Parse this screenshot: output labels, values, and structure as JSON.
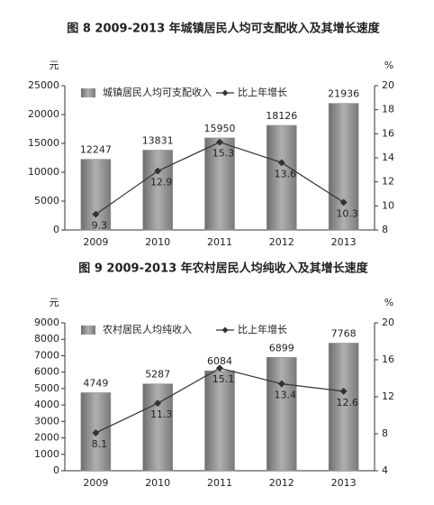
{
  "chart_data": [
    {
      "type": "combo",
      "title": "图 8 2009-2013 年城镇居民人均可支配收入及其增长速度",
      "ylabel": "元",
      "y2label": "%",
      "categories": [
        "2009",
        "2010",
        "2011",
        "2012",
        "2013"
      ],
      "series": [
        {
          "name": "城镇居民人均可支配收入",
          "type": "bar",
          "color": "#8a8a8a",
          "values": [
            12247,
            13831,
            15950,
            18126,
            21936
          ]
        },
        {
          "name": "比上年增长",
          "type": "line",
          "axis": "y2",
          "color": "#333333",
          "values": [
            9.3,
            12.9,
            15.3,
            13.6,
            10.3
          ]
        }
      ],
      "ylim": [
        0,
        25000
      ],
      "yticks": [
        0,
        5000,
        10000,
        15000,
        20000,
        25000
      ],
      "y2lim": [
        8,
        20
      ],
      "y2ticks": [
        8,
        10,
        12,
        14,
        16,
        18,
        20
      ],
      "legend": "top"
    },
    {
      "type": "combo",
      "title": "图 9 2009-2013 年农村居民人均纯收入及其增长速度",
      "ylabel": "元",
      "y2label": "%",
      "categories": [
        "2009",
        "2010",
        "2011",
        "2012",
        "2013"
      ],
      "series": [
        {
          "name": "农村居民人均纯收入",
          "type": "bar",
          "color": "#8a8a8a",
          "values": [
            4749,
            5287,
            6084,
            6899,
            7768
          ]
        },
        {
          "name": "比上年增长",
          "type": "line",
          "axis": "y2",
          "color": "#333333",
          "values": [
            8.1,
            11.3,
            15.1,
            13.4,
            12.6
          ]
        }
      ],
      "ylim": [
        0,
        9000
      ],
      "yticks": [
        0,
        1000,
        2000,
        3000,
        4000,
        5000,
        6000,
        7000,
        8000,
        9000
      ],
      "y2lim": [
        4,
        20
      ],
      "y2ticks": [
        4,
        8,
        12,
        16,
        20
      ],
      "legend": "top"
    }
  ]
}
